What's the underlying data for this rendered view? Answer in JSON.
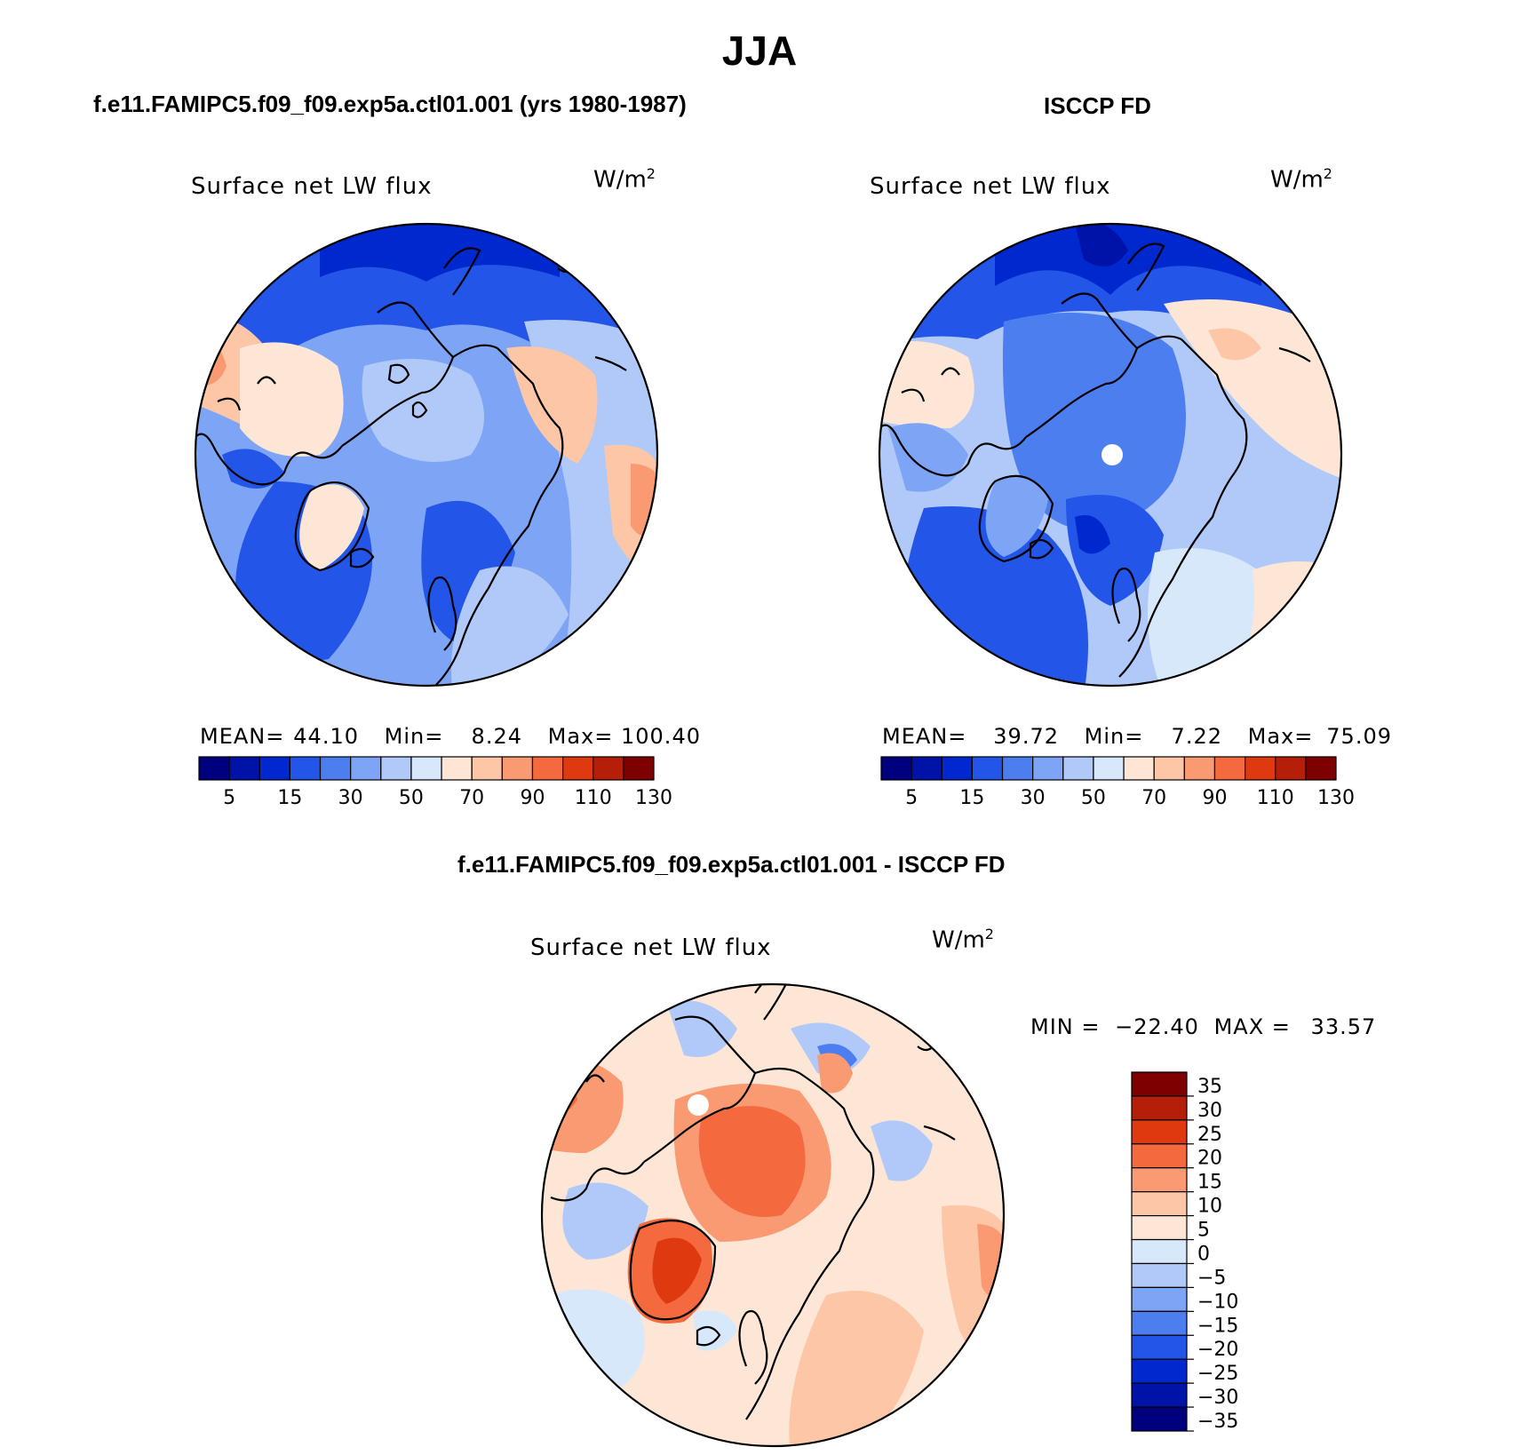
{
  "main_title": "JJA",
  "panels": {
    "model": {
      "heading": "f.e11.FAMIPC5.f09_f09.exp5a.ctl01.001 (yrs 1980-1987)",
      "variable": "Surface net LW flux",
      "units": "W/m",
      "units_exp": "2",
      "mean_label": "MEAN=",
      "mean_value": "44.10",
      "min_label": "Min=",
      "min_value": "8.24",
      "max_label": "Max=",
      "max_value": "100.40"
    },
    "obs": {
      "heading": "ISCCP FD",
      "variable": "Surface net LW flux",
      "units": "W/m",
      "units_exp": "2",
      "mean_label": "MEAN=",
      "mean_value": "39.72",
      "min_label": "Min=",
      "min_value": "7.22",
      "max_label": "Max=",
      "max_value": "75.09"
    },
    "diff": {
      "heading": "f.e11.FAMIPC5.f09_f09.exp5a.ctl01.001 - ISCCP FD",
      "variable": "Surface net LW flux",
      "units": "W/m",
      "units_exp": "2",
      "min_label": "MIN =",
      "min_value": "−22.40",
      "max_label": "MAX =",
      "max_value": "33.57"
    }
  },
  "colorbar_top": {
    "colors": [
      "#00007f",
      "#0013a8",
      "#0028cf",
      "#2255e8",
      "#4d7ef0",
      "#7ea5f5",
      "#b0c9f8",
      "#d8e8fb",
      "#fde6d6",
      "#fcc6a7",
      "#f99a73",
      "#f46a3e",
      "#df3a0f",
      "#b51e08",
      "#7f0000"
    ],
    "tick_labels": [
      "5",
      "15",
      "30",
      "50",
      "70",
      "90",
      "110",
      "130"
    ]
  },
  "colorbar_diff": {
    "colors": [
      "#7f0000",
      "#b51e08",
      "#df3a0f",
      "#f46a3e",
      "#f99a73",
      "#fcc6a7",
      "#fde6d6",
      "#d8e8fb",
      "#b0c9f8",
      "#7ea5f5",
      "#4d7ef0",
      "#2255e8",
      "#0028cf",
      "#0013a8",
      "#00007f"
    ],
    "tick_labels": [
      "35",
      "30",
      "25",
      "20",
      "15",
      "10",
      "5",
      "0",
      "−5",
      "−10",
      "−15",
      "−20",
      "−25",
      "−30",
      "−35"
    ]
  },
  "colors": {
    "ocean_model": "#7ea5f5",
    "ocean_obs": "#4d7ef0",
    "diff_base": "#fde6d6",
    "coastline": "#000000"
  }
}
